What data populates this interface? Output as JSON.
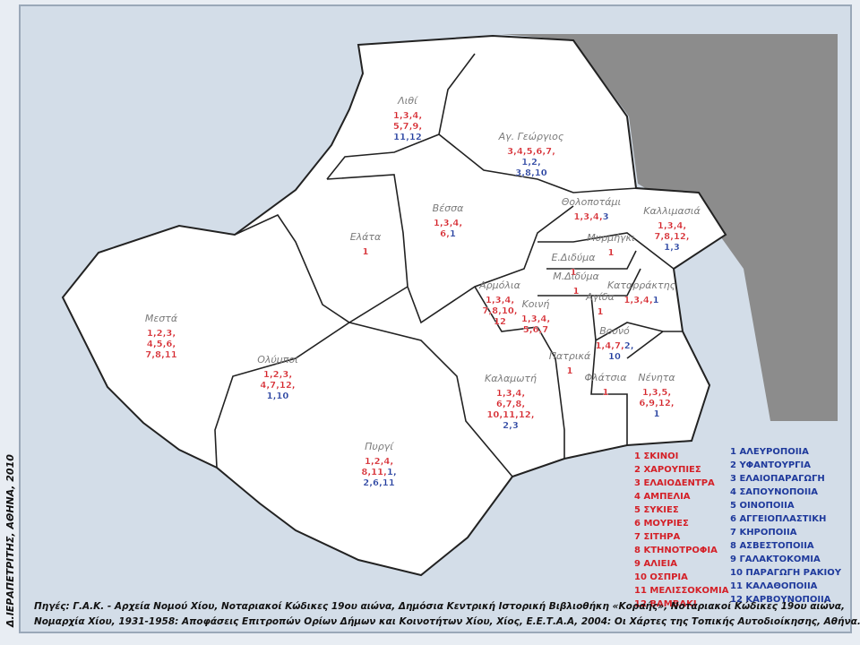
{
  "regions": [
    {
      "name": "Λιθί",
      "lines": [
        [
          {
            "text": "1,3,4,",
            "color": "#d42027"
          }
        ],
        [
          {
            "text": "5,7,9,",
            "color": "#d42027"
          }
        ],
        [
          {
            "text": "11,12",
            "color": "#1f3a9c"
          }
        ]
      ]
    },
    {
      "name": "Αγ. Γεώργιος",
      "lines": [
        [
          {
            "text": "3,4,5,6,7,",
            "color": "#d42027"
          }
        ],
        [
          {
            "text": "1,2,",
            "color": "#1f3a9c"
          }
        ],
        [
          {
            "text": "3,8,10",
            "color": "#1f3a9c"
          }
        ]
      ]
    },
    {
      "name": "Θολοποτάμι",
      "lines": [
        [
          {
            "text": "1,3,4,",
            "color": "#d42027"
          },
          {
            "text": "3",
            "color": "#1f3a9c"
          }
        ]
      ]
    },
    {
      "name": "Καλλιμασιά",
      "lines": [
        [
          {
            "text": "1,3,4,",
            "color": "#d42027"
          }
        ],
        [
          {
            "text": "7,8,12,",
            "color": "#d42027"
          }
        ],
        [
          {
            "text": "1,3",
            "color": "#1f3a9c"
          }
        ]
      ]
    },
    {
      "name": "Βέσσα",
      "lines": [
        [
          {
            "text": "1,3,4,",
            "color": "#d42027"
          }
        ],
        [
          {
            "text": "6,",
            "color": "#d42027"
          },
          {
            "text": "1",
            "color": "#1f3a9c"
          }
        ]
      ]
    },
    {
      "name": "Ελάτα",
      "lines": [
        [
          {
            "text": "1",
            "color": "#d42027"
          }
        ]
      ]
    },
    {
      "name": "Μυρμήγκι",
      "lines": [
        [
          {
            "text": "1",
            "color": "#d42027"
          }
        ]
      ]
    },
    {
      "name": "Ε.Διδύμα",
      "lines": [
        [
          {
            "text": "1",
            "color": "#d42027"
          }
        ]
      ]
    },
    {
      "name": "Μ.Διδύμα",
      "lines": [
        [
          {
            "text": "1",
            "color": "#d42027"
          }
        ]
      ]
    },
    {
      "name": "Καταρράκτης",
      "lines": [
        [
          {
            "text": "1,3,4,",
            "color": "#d42027"
          },
          {
            "text": "1",
            "color": "#1f3a9c"
          }
        ]
      ]
    },
    {
      "name": "Αρμόλια",
      "lines": [
        [
          {
            "text": "1,3,4,",
            "color": "#d42027"
          }
        ],
        [
          {
            "text": "7,8,10,",
            "color": "#d42027"
          }
        ],
        [
          {
            "text": "12",
            "color": "#d42027"
          }
        ]
      ]
    },
    {
      "name": "Αγίδα",
      "lines": [
        [
          {
            "text": "1",
            "color": "#d42027"
          }
        ]
      ]
    },
    {
      "name": "Κοινή",
      "lines": [
        [
          {
            "text": "1,3,4,",
            "color": "#d42027"
          }
        ],
        [
          {
            "text": "5,6,7",
            "color": "#d42027"
          }
        ]
      ]
    },
    {
      "name": "Βουνό",
      "lines": [
        [
          {
            "text": "1,4,7,",
            "color": "#d42027"
          },
          {
            "text": "2,",
            "color": "#1f3a9c"
          }
        ],
        [
          {
            "text": "10",
            "color": "#1f3a9c"
          }
        ]
      ]
    },
    {
      "name": "Πατρικά",
      "lines": [
        [
          {
            "text": "1",
            "color": "#d42027"
          }
        ]
      ]
    },
    {
      "name": "Φλάτσια",
      "lines": [
        [
          {
            "text": "1",
            "color": "#d42027"
          }
        ]
      ]
    },
    {
      "name": "Νένητα",
      "lines": [
        [
          {
            "text": "1,3,5,",
            "color": "#d42027"
          }
        ],
        [
          {
            "text": "6,9,12,",
            "color": "#d42027"
          }
        ],
        [
          {
            "text": "1",
            "color": "#1f3a9c"
          }
        ]
      ]
    },
    {
      "name": "Μεστά",
      "lines": [
        [
          {
            "text": "1,2,3,",
            "color": "#d42027"
          }
        ],
        [
          {
            "text": "4,5,6,",
            "color": "#d42027"
          }
        ],
        [
          {
            "text": "7,8,11",
            "color": "#d42027"
          }
        ]
      ]
    },
    {
      "name": "Ολύμποι",
      "lines": [
        [
          {
            "text": "1,2,3,",
            "color": "#d42027"
          }
        ],
        [
          {
            "text": "4,7,12,",
            "color": "#d42027"
          }
        ],
        [
          {
            "text": "1,10",
            "color": "#1f3a9c"
          }
        ]
      ]
    },
    {
      "name": "Καλαμωτή",
      "lines": [
        [
          {
            "text": "1,3,4,",
            "color": "#d42027"
          }
        ],
        [
          {
            "text": "6,7,8,",
            "color": "#d42027"
          }
        ],
        [
          {
            "text": "10,11,12,",
            "color": "#d42027"
          }
        ],
        [
          {
            "text": "2,3",
            "color": "#1f3a9c"
          }
        ]
      ]
    },
    {
      "name": "Πυργί",
      "lines": [
        [
          {
            "text": "1,2,4,",
            "color": "#d42027"
          }
        ],
        [
          {
            "text": "8,11,",
            "color": "#d42027"
          },
          {
            "text": "1,",
            "color": "#1f3a9c"
          }
        ],
        [
          {
            "text": "2,6,11",
            "color": "#1f3a9c"
          }
        ]
      ]
    }
  ],
  "legend_agriculture": {
    "color": "#d42027",
    "items": [
      "1 ΣΚΙΝΟΙ",
      "2 ΧΑΡΟΥΠΙΕΣ",
      "3 ΕΛΑΙΟΔΕΝΤΡΑ",
      "4 ΑΜΠΕΛΙΑ",
      "5 ΣΥΚΙΕΣ",
      "6 ΜΟΥΡΙΕΣ",
      "7 ΣΙΤΗΡΑ",
      "8 ΚΤΗΝΟΤΡΟΦΙΑ",
      "9 ΑΛΙΕΙΑ",
      "10 ΟΣΠΡΙΑ",
      "11 ΜΕΛΙΣΣΟΚΟΜΙΑ",
      "12 ΒΑΜΒΑΚΙ"
    ]
  },
  "legend_crafts": {
    "color": "#1f3a9c",
    "items": [
      "1 ΑΛΕΥΡΟΠΟΙΙΑ",
      "2 ΥΦΑΝΤΟΥΡΓΙΑ",
      "3 ΕΛΑΙΟΠΑΡΑΓΩΓΗ",
      "4 ΣΑΠΟΥΝΟΠΟΙΙΑ",
      "5 ΟΙΝΟΠΟΙΙΑ",
      "6 ΑΓΓΕΙΟΠΛΑΣΤΙΚΗ",
      "7 ΚΗΡΟΠΟΙΙΑ",
      "8 ΑΣΒΕΣΤΟΠΟΙΙΑ",
      "9 ΓΑΛΑΚΤΟΚΟΜΙΑ",
      "10 ΠΑΡΑΓΩΓΗ ΡΑΚΙΟΥ",
      "11 ΚΑΛΑΘΟΠΟΙΙΑ",
      "12 ΚΑΡΒΟΥΝΟΠΟΙΙΑ"
    ]
  },
  "author": "Δ.ΙΕΡΑΠΕΤΡΙΤΗΣ, ΑΘΗΝΑ, 2010",
  "sources": [
    "Πηγές: Γ.Α.Κ. - Αρχεία Νομού Χίου, Νοταριακοί Κώδικες 19ου αιώνα, Δημόσια Κεντρική Ιστορική Βιβλιοθήκη «Κοραής», Νοταριακοί Κώδικες 19ου αιώνα,",
    "Νομαρχία Χίου, 1931-1958: Αποφάσεις Επιτροπών Ορίων Δήμων και Κοινοτήτων Χίου, Χίος, Ε.Ε.Τ.Α.Α, 2004: Οι Χάρτες της Τοπικής Αυτοδιοίκησης, Αθήνα."
  ]
}
